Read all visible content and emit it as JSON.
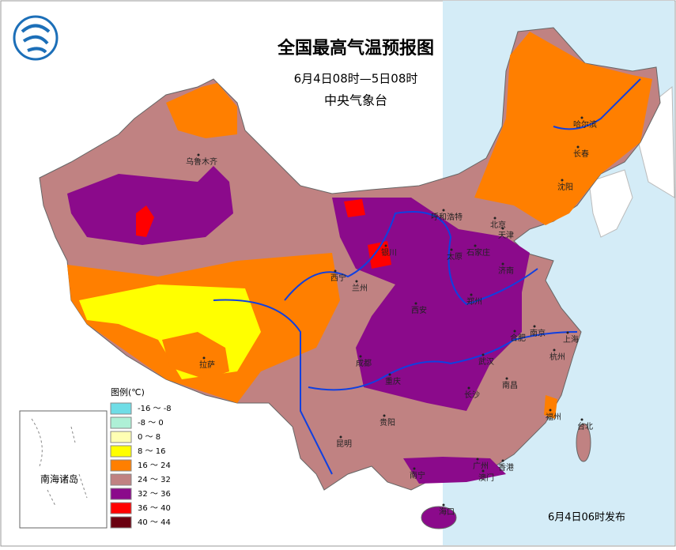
{
  "title": "全国最高气温预报图",
  "subtitle": "6月4日08时—5日08时",
  "issuer": "中央气象台",
  "legend": {
    "title": "图例(℃)",
    "items": [
      {
        "label": "-16 ～ -8",
        "color": "#6fdde6"
      },
      {
        "label": "-8 ～ 0",
        "color": "#aef0d6"
      },
      {
        "label": "0 ～ 8",
        "color": "#ffffb3"
      },
      {
        "label": "8 ～ 16",
        "color": "#ffff00"
      },
      {
        "label": "16 ～ 24",
        "color": "#ff7f00"
      },
      {
        "label": "24 ～ 32",
        "color": "#c08282"
      },
      {
        "label": "32 ～ 36",
        "color": "#8b0a8b"
      },
      {
        "label": "36 ～ 40",
        "color": "#ff0000"
      },
      {
        "label": "40 ～ 44",
        "color": "#6b0010"
      }
    ]
  },
  "cities": [
    "乌鲁木齐",
    "哈尔滨",
    "长春",
    "沈阳",
    "呼和浩特",
    "北京",
    "天津",
    "石家庄",
    "太原",
    "银川",
    "西宁",
    "兰州",
    "济南",
    "郑州",
    "西安",
    "南京",
    "合肥",
    "上海",
    "杭州",
    "成都",
    "武汉",
    "拉萨",
    "重庆",
    "长沙",
    "南昌",
    "贵阳",
    "福州",
    "台北",
    "昆明",
    "南宁",
    "广州",
    "香港",
    "澳门",
    "海口"
  ],
  "inset_label": "南海诸岛",
  "footer": "6月4日06时发布"
}
